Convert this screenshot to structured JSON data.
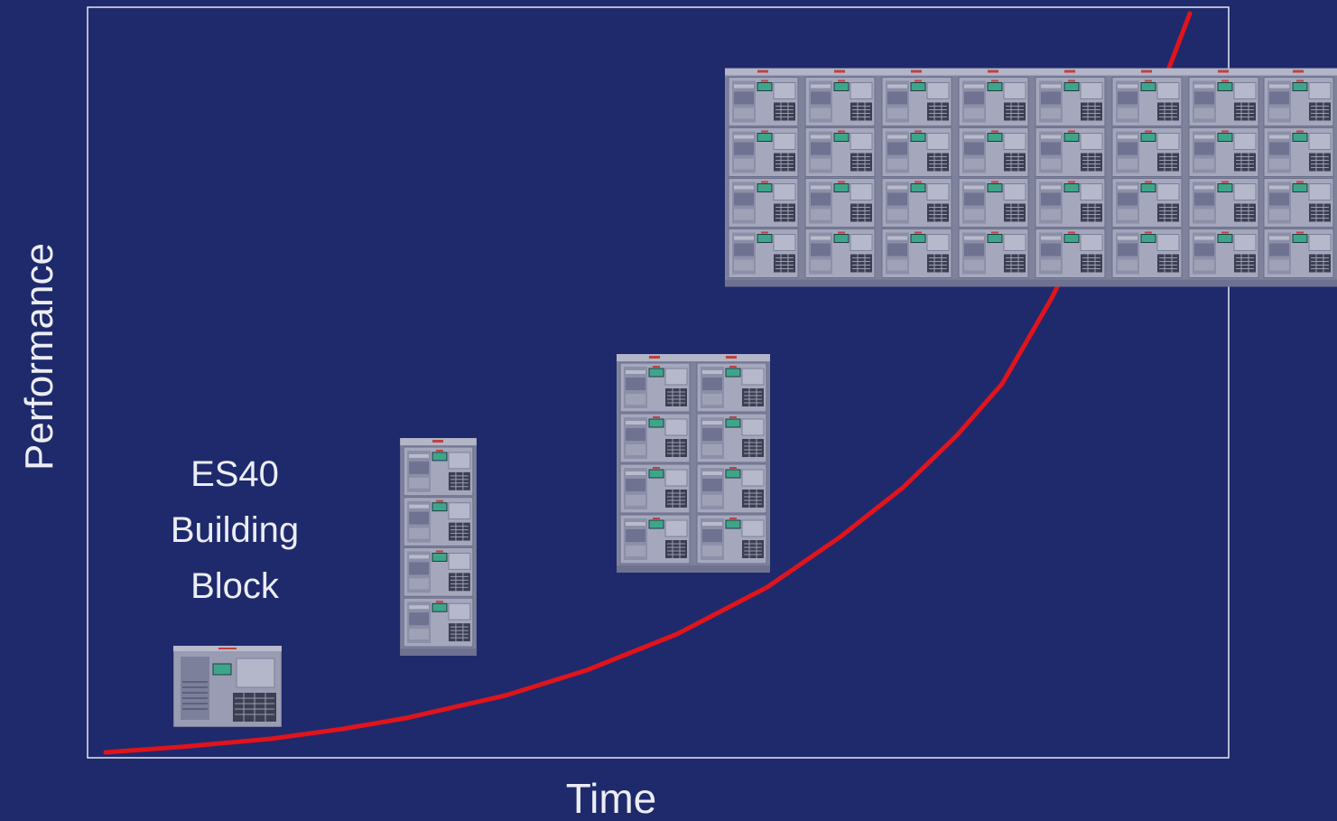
{
  "axes": {
    "y_label": "Performance",
    "x_label": "Time"
  },
  "building_block": {
    "lines": [
      "ES40",
      "Building",
      "Block"
    ]
  }
}
